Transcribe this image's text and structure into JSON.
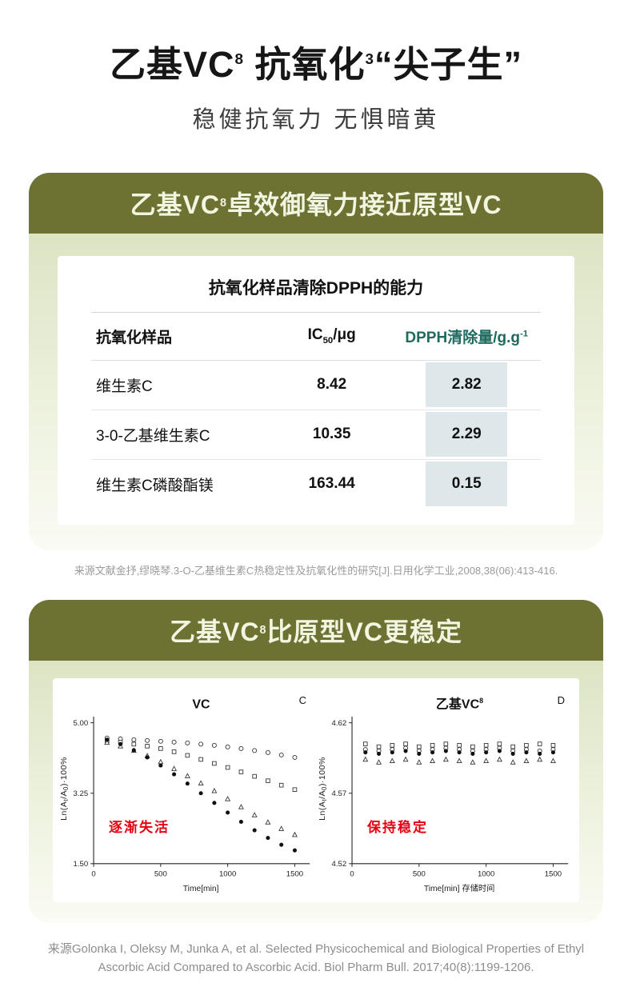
{
  "colors": {
    "olive_header": "#6d7233",
    "card_body_green": "#dce4c4",
    "header_text": "#f2f5e0",
    "table_highlight": "#dee8ea",
    "dpph_header_text": "#1e6a5e",
    "annotation_red": "#e60012"
  },
  "hero": {
    "title_part1": "乙基VC",
    "title_sup1": "8",
    "title_part2": " 抗氧化",
    "title_sup2": "3",
    "title_part3": "“尖子生”",
    "subtitle": "稳健抗氧力 无惧暗黄"
  },
  "card1": {
    "header_part1": "乙基VC",
    "header_sup": "8",
    "header_part2": "卓效御氧力接近原型VC",
    "table": {
      "title": "抗氧化样品清除DPPH的能力",
      "col1": "抗氧化样品",
      "col2_part1": "IC",
      "col2_sub": "50",
      "col2_part2": "/μg",
      "col3_part1": "DPPH清除量/g.g",
      "col3_sup": "-1",
      "rows": [
        {
          "sample": "维生素C",
          "ic50": "8.42",
          "dpph": "2.82"
        },
        {
          "sample": "3-0-乙基维生素C",
          "ic50": "10.35",
          "dpph": "2.29"
        },
        {
          "sample": "维生素C磷酸酯镁",
          "ic50": "163.44",
          "dpph": "0.15"
        }
      ]
    },
    "citation": "来源文献金抒,缪晓琴.3-O-乙基维生素C热稳定性及抗氧化性的研究[J].日用化学工业,2008,38(06):413-416."
  },
  "card2": {
    "header_part1": "乙基VC",
    "header_sup": "8",
    "header_part2": "比原型VC更稳定"
  },
  "chart_data": [
    {
      "type": "scatter",
      "title": "VC",
      "title_sup": "",
      "corner_label": "C",
      "xlabel": "Time[min]",
      "ylabel": "Ln(At/A0)·100%",
      "ylabel_parts": [
        "Ln(A",
        "t",
        "/A",
        "0",
        ")·100%"
      ],
      "annotation": "逐渐失活",
      "xlim": [
        0,
        1600
      ],
      "ylim": [
        1.5,
        5.0
      ],
      "yticks": [
        5.0,
        3.25,
        1.5
      ],
      "xticks": [
        0,
        500,
        1000,
        1500
      ],
      "x": [
        100,
        200,
        300,
        400,
        500,
        600,
        700,
        800,
        900,
        1000,
        1100,
        1200,
        1300,
        1400,
        1500
      ],
      "series": [
        {
          "name": "open-circle-series",
          "marker": "circle-open",
          "values": [
            4.62,
            4.6,
            4.58,
            4.56,
            4.54,
            4.52,
            4.5,
            4.47,
            4.44,
            4.4,
            4.36,
            4.31,
            4.26,
            4.2,
            4.14
          ]
        },
        {
          "name": "open-square-series",
          "marker": "square-open",
          "values": [
            4.56,
            4.52,
            4.47,
            4.42,
            4.36,
            4.28,
            4.19,
            4.09,
            3.99,
            3.89,
            3.78,
            3.67,
            3.56,
            3.45,
            3.34
          ]
        },
        {
          "name": "open-triangle-series",
          "marker": "triangle-open",
          "values": [
            4.51,
            4.42,
            4.31,
            4.18,
            4.03,
            3.86,
            3.68,
            3.5,
            3.31,
            3.11,
            2.91,
            2.71,
            2.53,
            2.37,
            2.22
          ]
        },
        {
          "name": "filled-circle-series",
          "marker": "circle-filled",
          "values": [
            4.58,
            4.47,
            4.32,
            4.14,
            3.94,
            3.72,
            3.49,
            3.25,
            3.01,
            2.77,
            2.54,
            2.33,
            2.14,
            1.97,
            1.83
          ]
        }
      ]
    },
    {
      "type": "scatter",
      "title": "乙基VC",
      "title_sup": "8",
      "corner_label": "D",
      "xlabel": "Time[min] 存储时间",
      "ylabel": "Ln(At/A0)·100%",
      "ylabel_parts": [
        "Ln(A",
        "t",
        "/A",
        "0",
        ")·100%"
      ],
      "annotation": "保持稳定",
      "xlim": [
        0,
        1600
      ],
      "ylim": [
        4.52,
        4.62
      ],
      "yticks": [
        4.62,
        4.57,
        4.52
      ],
      "xticks": [
        0,
        500,
        1000,
        1500
      ],
      "x": [
        100,
        200,
        300,
        400,
        500,
        600,
        700,
        800,
        900,
        1000,
        1100,
        1200,
        1300,
        1400,
        1500
      ],
      "series": [
        {
          "name": "open-square-series",
          "marker": "square-open",
          "values": [
            4.605,
            4.603,
            4.604,
            4.605,
            4.603,
            4.604,
            4.605,
            4.604,
            4.603,
            4.604,
            4.605,
            4.603,
            4.604,
            4.605,
            4.604
          ]
        },
        {
          "name": "open-circle-series",
          "marker": "circle-open",
          "values": [
            4.601,
            4.6,
            4.601,
            4.602,
            4.6,
            4.601,
            4.602,
            4.601,
            4.6,
            4.601,
            4.602,
            4.6,
            4.601,
            4.6,
            4.601
          ]
        },
        {
          "name": "filled-circle-series",
          "marker": "circle-filled",
          "values": [
            4.599,
            4.598,
            4.599,
            4.6,
            4.598,
            4.599,
            4.6,
            4.599,
            4.598,
            4.599,
            4.6,
            4.598,
            4.599,
            4.598,
            4.599
          ]
        },
        {
          "name": "open-triangle-series",
          "marker": "triangle-open",
          "values": [
            4.594,
            4.592,
            4.593,
            4.594,
            4.592,
            4.593,
            4.594,
            4.593,
            4.592,
            4.593,
            4.594,
            4.592,
            4.593,
            4.594,
            4.593
          ]
        }
      ]
    }
  ],
  "footer_citation": "来源Golonka I, Oleksy M, Junka A, et al. Selected Physicochemical and Biological Properties of Ethyl Ascorbic Acid Compared to Ascorbic Acid. Biol Pharm Bull. 2017;40(8):1199-1206."
}
